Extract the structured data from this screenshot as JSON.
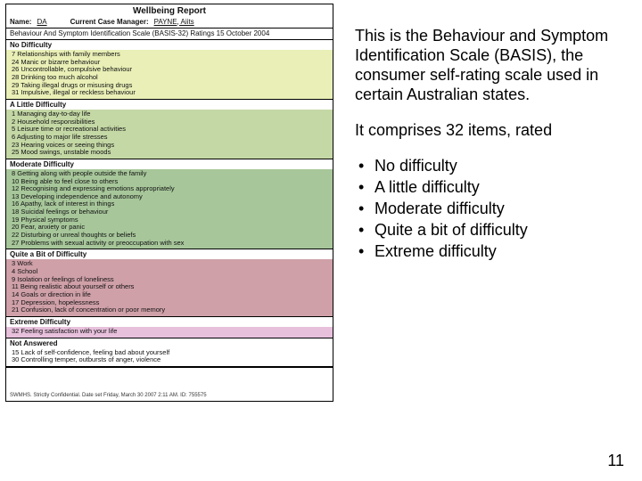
{
  "report": {
    "title": "Wellbeing Report",
    "name_label": "Name:",
    "name_value": "DA",
    "mgr_label": "Current Case Manager:",
    "mgr_value": "PAYNE, Aiits",
    "scale_line": "Behaviour And Symptom Identification Scale (BASIS-32) Ratings 15 October 2004",
    "footer": "SWMHS. Strictly Confidential. Date set Friday, March 30 2007 2:11 AM. ID: 755575"
  },
  "sections": [
    {
      "title": "No Difficulty",
      "color": "c0",
      "items": [
        {
          "n": "7",
          "t": "Relationships with family members"
        },
        {
          "n": "24",
          "t": "Manic or bizarre behaviour"
        },
        {
          "n": "26",
          "t": "Uncontrollable, compulsive behaviour"
        },
        {
          "n": "28",
          "t": "Drinking too much alcohol"
        },
        {
          "n": "29",
          "t": "Taking illegal drugs or misusing drugs"
        },
        {
          "n": "31",
          "t": "Impulsive, illegal or reckless behaviour"
        }
      ]
    },
    {
      "title": "A Little Difficulty",
      "color": "c1",
      "items": [
        {
          "n": "1",
          "t": "Managing day-to-day life"
        },
        {
          "n": "2",
          "t": "Household responsibilities"
        },
        {
          "n": "5",
          "t": "Leisure time or recreational activities"
        },
        {
          "n": "6",
          "t": "Adjusting to major life stresses"
        },
        {
          "n": "23",
          "t": "Hearing voices or seeing things"
        },
        {
          "n": "25",
          "t": "Mood swings, unstable moods"
        }
      ]
    },
    {
      "title": "Moderate Difficulty",
      "color": "c2",
      "items": [
        {
          "n": "8",
          "t": "Getting along with people outside the family"
        },
        {
          "n": "10",
          "t": "Being able to feel close to others"
        },
        {
          "n": "12",
          "t": "Recognising and expressing emotions appropriately"
        },
        {
          "n": "13",
          "t": "Developing independence and autonomy"
        },
        {
          "n": "16",
          "t": "Apathy, lack of interest in things"
        },
        {
          "n": "18",
          "t": "Suicidal feelings or behaviour"
        },
        {
          "n": "19",
          "t": "Physical symptoms"
        },
        {
          "n": "20",
          "t": "Fear, anxiety or panic"
        },
        {
          "n": "22",
          "t": "Disturbing or unreal thoughts or beliefs"
        },
        {
          "n": "27",
          "t": "Problems with sexual activity or preoccupation with sex"
        }
      ]
    },
    {
      "title": "Quite a Bit of Difficulty",
      "color": "c3",
      "items": [
        {
          "n": "3",
          "t": "Work"
        },
        {
          "n": "4",
          "t": "School"
        },
        {
          "n": "9",
          "t": "Isolation or feelings of loneliness"
        },
        {
          "n": "11",
          "t": "Being realistic about yourself or others"
        },
        {
          "n": "14",
          "t": "Goals or direction in life"
        },
        {
          "n": "17",
          "t": "Depression, hopelessness"
        },
        {
          "n": "21",
          "t": "Confusion, lack of concentration or poor memory"
        }
      ]
    },
    {
      "title": "Extreme Difficulty",
      "color": "c4",
      "items": [
        {
          "n": "32",
          "t": "Feeling satisfaction with your life"
        }
      ]
    },
    {
      "title": "Not Answered",
      "color": "c5",
      "items": [
        {
          "n": "15",
          "t": "Lack of self-confidence, feeling bad about yourself"
        },
        {
          "n": "30",
          "t": "Controlling temper, outbursts of anger, violence"
        }
      ]
    }
  ],
  "right": {
    "p1": "This is the Behaviour and Symptom Identification Scale (BASIS), the consumer self-rating scale used in certain Australian states.",
    "p2": "It comprises 32 items, rated",
    "bullets": [
      "No difficulty",
      "A little difficulty",
      "Moderate difficulty",
      "Quite a bit of difficulty",
      "Extreme difficulty"
    ]
  },
  "page_number": "11"
}
